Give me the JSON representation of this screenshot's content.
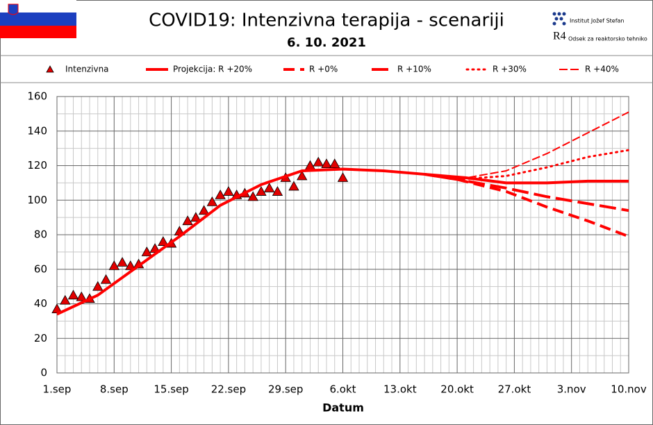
{
  "header": {
    "institute": "Institut Jožef Stefan",
    "logo_mark": "R4",
    "department": "Odsek za reaktorsko tehniko"
  },
  "chart_data": {
    "type": "line",
    "title": "COVID19: Intenzivna terapija - scenariji",
    "subtitle": "6. 10. 2021",
    "x_label": "Datum",
    "xlim": [
      0,
      70
    ],
    "ylim": [
      0,
      160
    ],
    "xticks": [
      {
        "value": 0,
        "label": "1.sep"
      },
      {
        "value": 7,
        "label": "8.sep"
      },
      {
        "value": 14,
        "label": "15.sep"
      },
      {
        "value": 21,
        "label": "22.sep"
      },
      {
        "value": 28,
        "label": "29.sep"
      },
      {
        "value": 35,
        "label": "6.okt"
      },
      {
        "value": 42,
        "label": "13.okt"
      },
      {
        "value": 49,
        "label": "20.okt"
      },
      {
        "value": 56,
        "label": "27.okt"
      },
      {
        "value": 63,
        "label": "3.nov"
      },
      {
        "value": 70,
        "label": "10.nov"
      }
    ],
    "xminorticks": [
      1,
      2,
      3,
      4,
      5,
      6,
      8,
      9,
      10,
      11,
      12,
      13,
      15,
      16,
      17,
      18,
      19,
      20,
      22,
      23,
      24,
      25,
      26,
      27,
      29,
      30,
      31,
      32,
      33,
      34,
      36,
      37,
      38,
      39,
      40,
      41,
      43,
      44,
      45,
      46,
      47,
      48,
      50,
      51,
      52,
      53,
      54,
      55,
      57,
      58,
      59,
      60,
      61,
      62,
      64,
      65,
      66,
      67,
      68,
      69
    ],
    "yticks": [
      0,
      20,
      40,
      60,
      80,
      100,
      120,
      140,
      160
    ],
    "yminorticks": [
      10,
      30,
      50,
      70,
      90,
      110,
      130,
      150
    ],
    "grid": true,
    "series": [
      {
        "name": "Intenzivna",
        "color": "#e00000",
        "marker": "triangle",
        "x": [
          0,
          1,
          2,
          3,
          4,
          5,
          6,
          7,
          8,
          9,
          10,
          11,
          12,
          13,
          14,
          15,
          16,
          17,
          18,
          19,
          20,
          21,
          22,
          23,
          24,
          25,
          26,
          27,
          28,
          29,
          30,
          31,
          32,
          33,
          34,
          35
        ],
        "values": [
          37,
          42,
          45,
          44,
          43,
          50,
          54,
          62,
          64,
          62,
          63,
          70,
          72,
          76,
          75,
          82,
          88,
          90,
          94,
          99,
          103,
          105,
          103,
          104,
          102,
          105,
          107,
          105,
          113,
          108,
          114,
          120,
          122,
          121,
          121,
          113
        ]
      },
      {
        "name": "Projekcija: R +20%",
        "color": "#ff0000",
        "style": "solid",
        "x": [
          0,
          5,
          10,
          15,
          20,
          25,
          30,
          35,
          40,
          45,
          50,
          55,
          60,
          65,
          70
        ],
        "values": [
          34,
          45,
          62,
          79,
          97,
          109,
          117,
          118,
          117,
          115,
          113,
          110,
          110,
          111,
          111
        ]
      },
      {
        "name": "R +0%",
        "color": "#ff0000",
        "style": "dash",
        "x": [
          45,
          49,
          55,
          60,
          65,
          70
        ],
        "values": [
          115,
          112,
          105,
          96,
          88,
          79
        ]
      },
      {
        "name": "R +10%",
        "color": "#ff0000",
        "style": "longdash",
        "x": [
          45,
          49,
          55,
          60,
          65,
          70
        ],
        "values": [
          115,
          112,
          107,
          102,
          98,
          94
        ]
      },
      {
        "name": "R +30%",
        "color": "#ff0000",
        "style": "dotted",
        "x": [
          45,
          49,
          55,
          60,
          65,
          70
        ],
        "values": [
          115,
          112,
          114,
          119,
          125,
          129
        ]
      },
      {
        "name": "R +40%",
        "color": "#ff0000",
        "style": "hollow",
        "x": [
          45,
          49,
          55,
          60,
          65,
          70
        ],
        "values": [
          115,
          112,
          117,
          127,
          139,
          151
        ]
      }
    ]
  }
}
